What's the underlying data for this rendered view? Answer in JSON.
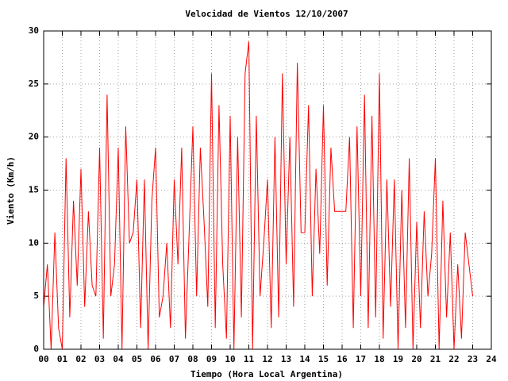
{
  "chart_data": {
    "type": "line",
    "title": "Velocidad de Vientos 12/10/2007",
    "x_label": "Tiempo (Hora Local Argentina)",
    "y_label": "Viento (Km/h)",
    "x": [
      0,
      0.2,
      0.4,
      0.6,
      0.8,
      1,
      1.2,
      1.4,
      1.6,
      1.8,
      2,
      2.2,
      2.4,
      2.6,
      2.8,
      3,
      3.2,
      3.4,
      3.6,
      3.8,
      4,
      4.2,
      4.4,
      4.6,
      4.8,
      5,
      5.2,
      5.4,
      5.6,
      5.8,
      6,
      6.2,
      6.4,
      6.6,
      6.8,
      7,
      7.2,
      7.4,
      7.6,
      7.8,
      8,
      8.2,
      8.4,
      8.6,
      8.8,
      9,
      9.2,
      9.4,
      9.6,
      9.8,
      10,
      10.2,
      10.4,
      10.6,
      10.8,
      11,
      11.2,
      11.4,
      11.6,
      11.8,
      12,
      12.2,
      12.4,
      12.6,
      12.8,
      13,
      13.2,
      13.4,
      13.6,
      13.8,
      14,
      14.2,
      14.4,
      14.6,
      14.8,
      15,
      15.2,
      15.4,
      15.6,
      15.8,
      16,
      16.2,
      16.4,
      16.6,
      16.8,
      17,
      17.2,
      17.4,
      17.6,
      17.8,
      18,
      18.2,
      18.4,
      18.6,
      18.8,
      19,
      19.2,
      19.4,
      19.6,
      19.8,
      20,
      20.2,
      20.4,
      20.6,
      20.8,
      21,
      21.2,
      21.4,
      21.6,
      21.8,
      22,
      22.2,
      22.4,
      22.6,
      22.8,
      23
    ],
    "series": [
      {
        "color": "#ff0000",
        "values": [
          4,
          8,
          0,
          11,
          2,
          0,
          18,
          3,
          14,
          6,
          17,
          4,
          13,
          6,
          5,
          19,
          1,
          24,
          5,
          8,
          19,
          0,
          21,
          10,
          11,
          16,
          2,
          16,
          0,
          14,
          19,
          3,
          5,
          10,
          2,
          16,
          8,
          19,
          1,
          11,
          21,
          5,
          19,
          12,
          4,
          26,
          2,
          23,
          8,
          1,
          22,
          0,
          20,
          3,
          26,
          29,
          0,
          22,
          5,
          10,
          16,
          2,
          20,
          3,
          26,
          8,
          20,
          4,
          27,
          11,
          11,
          23,
          5,
          17,
          9,
          23,
          6,
          19,
          13,
          13,
          13,
          13,
          20,
          2,
          21,
          5,
          24,
          2,
          22,
          3,
          26,
          1,
          16,
          4,
          16,
          0,
          15,
          2,
          18,
          0,
          12,
          2,
          13,
          5,
          9,
          18,
          0,
          14,
          3,
          11,
          0,
          8,
          1,
          11,
          8,
          5
        ]
      }
    ],
    "xlim": [
      0,
      24
    ],
    "ylim": [
      0,
      30
    ],
    "xticks": [
      {
        "value": 0,
        "label": "00"
      },
      {
        "value": 1,
        "label": "01"
      },
      {
        "value": 2,
        "label": "02"
      },
      {
        "value": 3,
        "label": "03"
      },
      {
        "value": 4,
        "label": "04"
      },
      {
        "value": 5,
        "label": "05"
      },
      {
        "value": 6,
        "label": "06"
      },
      {
        "value": 7,
        "label": "07"
      },
      {
        "value": 8,
        "label": "08"
      },
      {
        "value": 9,
        "label": "09"
      },
      10,
      11,
      12,
      13,
      14,
      15,
      16,
      17,
      18,
      19,
      20,
      21,
      22,
      23,
      24
    ],
    "yticks": [
      0,
      5,
      10,
      15,
      20,
      25,
      30
    ],
    "grid": true
  }
}
